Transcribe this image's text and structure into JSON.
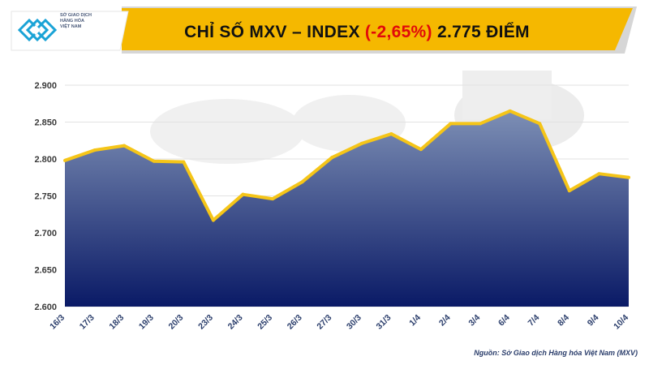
{
  "header": {
    "title_prefix": "CHỈ SỐ MXV – INDEX ",
    "title_change": "(-2,65%)",
    "title_value": " 2.775 ĐIỂM"
  },
  "logo": {
    "lines": [
      "SỞ GIAO DỊCH",
      "HÀNG HÓA",
      "VIỆT NAM"
    ]
  },
  "source": "Nguồn: Sở Giao dịch Hàng hóa Việt Nam (MXV)",
  "colors": {
    "banner_yellow": "#f5b800",
    "banner_grey": "#d6d6d6",
    "line_yellow": "#f5c518",
    "area_top": "#7d8fb5",
    "area_bottom": "#0a1a66",
    "change_red": "#e10a0a"
  },
  "chart_data": {
    "type": "area",
    "title": "CHỈ SỐ MXV – INDEX (-2,65%) 2.775 ĐIỂM",
    "xlabel": "",
    "ylabel": "",
    "categories": [
      "16/3",
      "17/3",
      "18/3",
      "19/3",
      "20/3",
      "23/3",
      "24/3",
      "25/3",
      "26/3",
      "27/3",
      "30/3",
      "31/3",
      "1/4",
      "2/4",
      "3/4",
      "6/4",
      "7/4",
      "8/4",
      "9/4",
      "10/4"
    ],
    "values": [
      2798,
      2812,
      2818,
      2797,
      2796,
      2717,
      2752,
      2746,
      2769,
      2802,
      2821,
      2834,
      2813,
      2848,
      2848,
      2865,
      2848,
      2757,
      2780,
      2775
    ],
    "ylim": [
      2600,
      2900
    ],
    "yticks": [
      2600,
      2650,
      2700,
      2750,
      2800,
      2850,
      2900
    ],
    "ytick_labels": [
      "2.600",
      "2.650",
      "2.700",
      "2.750",
      "2.800",
      "2.850",
      "2.900"
    ],
    "grid": true,
    "legend": "none"
  }
}
